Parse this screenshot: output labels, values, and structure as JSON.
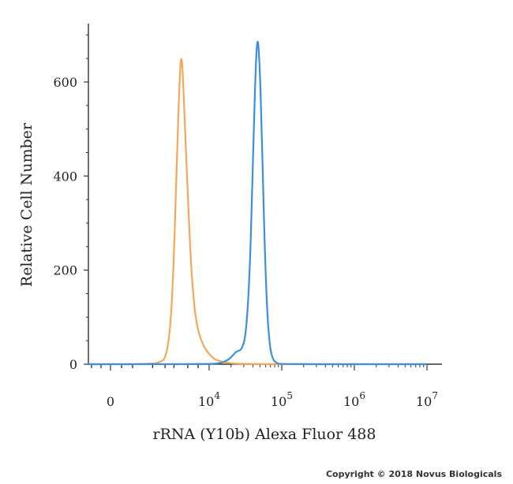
{
  "copyright": "Copyright © 2018 Novus Biologicals",
  "chart_data": {
    "type": "line",
    "title": "",
    "xlabel": "rRNA (Y10b) Alexa Fluor 488",
    "ylabel": "Relative Cell Number",
    "x_scale": "biexponential",
    "xlim": [
      -1000,
      10000000
    ],
    "ylim": [
      0,
      720
    ],
    "grid": false,
    "y_ticks": [
      0,
      200,
      400,
      600
    ],
    "x_ticks": [
      {
        "value": 0,
        "base": "0",
        "exp": ""
      },
      {
        "value": 10000,
        "base": "10",
        "exp": "4"
      },
      {
        "value": 100000,
        "base": "10",
        "exp": "5"
      },
      {
        "value": 1000000,
        "base": "10",
        "exp": "6"
      },
      {
        "value": 10000000,
        "base": "10",
        "exp": "7"
      }
    ],
    "series": [
      {
        "color": "#f5a65b",
        "points": [
          [
            -1000,
            0
          ],
          [
            0,
            0
          ],
          [
            1000,
            0
          ],
          [
            2000,
            2
          ],
          [
            2500,
            15
          ],
          [
            2900,
            90
          ],
          [
            3200,
            230
          ],
          [
            3500,
            430
          ],
          [
            3800,
            590
          ],
          [
            4000,
            655
          ],
          [
            4200,
            640
          ],
          [
            4500,
            530
          ],
          [
            5000,
            360
          ],
          [
            5600,
            200
          ],
          [
            6300,
            110
          ],
          [
            7000,
            70
          ],
          [
            8000,
            45
          ],
          [
            9000,
            30
          ],
          [
            10500,
            18
          ],
          [
            12000,
            10
          ],
          [
            15000,
            5
          ],
          [
            20000,
            2
          ],
          [
            30000,
            0
          ],
          [
            10000000,
            0
          ]
        ]
      },
      {
        "color": "#3a8fe0",
        "points": [
          [
            -1000,
            0
          ],
          [
            10000,
            0
          ],
          [
            14000,
            2
          ],
          [
            18000,
            8
          ],
          [
            21000,
            18
          ],
          [
            24000,
            28
          ],
          [
            28000,
            30
          ],
          [
            32000,
            60
          ],
          [
            36000,
            180
          ],
          [
            40000,
            420
          ],
          [
            43000,
            600
          ],
          [
            46000,
            700
          ],
          [
            49000,
            660
          ],
          [
            53000,
            500
          ],
          [
            57000,
            300
          ],
          [
            62000,
            130
          ],
          [
            68000,
            40
          ],
          [
            75000,
            10
          ],
          [
            85000,
            2
          ],
          [
            100000,
            0
          ],
          [
            10000000,
            0
          ]
        ]
      }
    ]
  }
}
